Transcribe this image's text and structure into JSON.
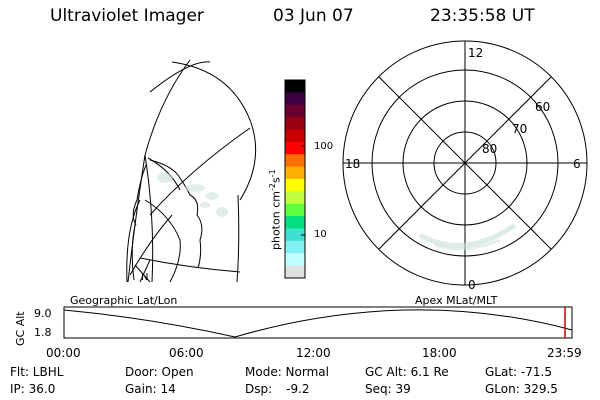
{
  "header": {
    "instrument": "Ultraviolet Imager",
    "date": "03 Jun 07",
    "time": "23:35:58 UT"
  },
  "colorbar": {
    "unit_label": "photon cm",
    "exp1": "-2",
    "mid": "s",
    "exp2": "-1",
    "tick_top": "100",
    "tick_bottom": "10",
    "colors": [
      "#000000",
      "#3a0040",
      "#6a0030",
      "#9a0010",
      "#c80000",
      "#ff0000",
      "#ff7000",
      "#ffb000",
      "#ffff00",
      "#c0ff40",
      "#60ff40",
      "#00e080",
      "#40e0d0",
      "#80f0f0",
      "#c0ffff",
      "#e0e0e0"
    ]
  },
  "polar_plot": {
    "label_12": "12",
    "label_0": "0",
    "label_18": "18",
    "label_6": "6",
    "lat_60": "60",
    "lat_70": "70",
    "lat_80": "80",
    "caption": "Apex MLat/MLT"
  },
  "geo_plot": {
    "caption": "Geographic Lat/Lon"
  },
  "timeline": {
    "axis_title": "GC Alt",
    "y_top": "9.0",
    "y_bottom": "1.8",
    "ticks": [
      "00:00",
      "06:00",
      "12:00",
      "18:00",
      "23:59"
    ],
    "marker_color": "#cc0000"
  },
  "info": {
    "flt": "Flt: LBHL",
    "ip": "IP: 36.0",
    "door": "Door: Open",
    "gain": "Gain: 14",
    "mode": "Mode: Normal",
    "dsp_label": "Dsp:",
    "dsp_value": "-9.2",
    "gc_alt": "GC Alt: 6.1 Re",
    "seq": "Seq: 39",
    "glat": "GLat: -71.5",
    "glon": "GLon: 329.5"
  }
}
